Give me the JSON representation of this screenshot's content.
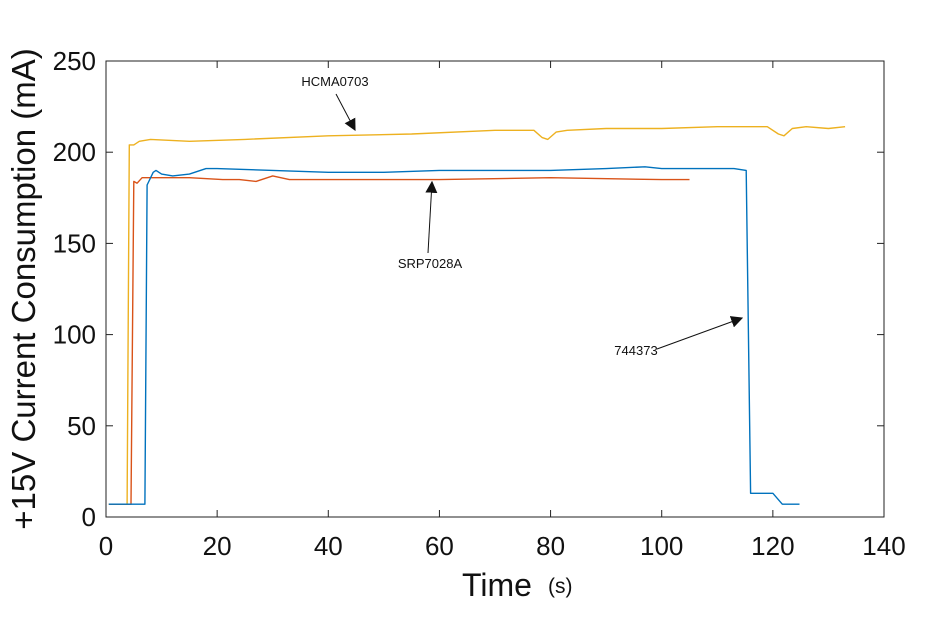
{
  "chart_data": {
    "type": "line",
    "title": "",
    "xlabel": "Time",
    "xlabel_unit": "(s)",
    "ylabel": "+15V Current Consumption (mA)",
    "xlim": [
      0,
      140
    ],
    "ylim": [
      0,
      250
    ],
    "xticks": [
      0,
      20,
      40,
      60,
      80,
      100,
      120,
      140
    ],
    "yticks": [
      0,
      50,
      100,
      150,
      200,
      250
    ],
    "grid": false,
    "legend": "none",
    "series": [
      {
        "name": "HCMA0703",
        "color": "#EDB120",
        "points": [
          [
            0.5,
            7
          ],
          [
            3.8,
            7
          ],
          [
            4.2,
            204
          ],
          [
            5,
            204
          ],
          [
            6,
            206
          ],
          [
            8,
            207
          ],
          [
            15,
            206
          ],
          [
            25,
            207
          ],
          [
            40,
            209
          ],
          [
            55,
            210
          ],
          [
            70,
            212
          ],
          [
            77,
            212
          ],
          [
            78.5,
            208
          ],
          [
            79.5,
            207
          ],
          [
            81,
            211
          ],
          [
            83,
            212
          ],
          [
            90,
            213
          ],
          [
            100,
            213
          ],
          [
            110,
            214
          ],
          [
            119,
            214
          ],
          [
            121,
            210
          ],
          [
            122,
            209
          ],
          [
            123.5,
            213
          ],
          [
            126,
            214
          ],
          [
            130,
            213
          ],
          [
            133,
            214
          ]
        ]
      },
      {
        "name": "SRP7028A",
        "color": "#D95319",
        "points": [
          [
            0.5,
            7
          ],
          [
            4.5,
            7
          ],
          [
            5,
            184
          ],
          [
            5.6,
            183
          ],
          [
            6.5,
            186
          ],
          [
            8,
            186
          ],
          [
            15,
            186
          ],
          [
            21,
            185
          ],
          [
            24,
            185
          ],
          [
            27,
            184
          ],
          [
            30,
            187
          ],
          [
            33,
            185
          ],
          [
            40,
            185
          ],
          [
            60,
            185
          ],
          [
            80,
            186
          ],
          [
            100,
            185
          ],
          [
            105,
            185
          ]
        ]
      },
      {
        "name": "744373",
        "color": "#0072BD",
        "points": [
          [
            0.5,
            7
          ],
          [
            7,
            7
          ],
          [
            7.4,
            182
          ],
          [
            8.5,
            189
          ],
          [
            9,
            190
          ],
          [
            10,
            188
          ],
          [
            12,
            187
          ],
          [
            15,
            188
          ],
          [
            18,
            191
          ],
          [
            20,
            191
          ],
          [
            30,
            190
          ],
          [
            40,
            189
          ],
          [
            50,
            189
          ],
          [
            60,
            190
          ],
          [
            70,
            190
          ],
          [
            80,
            190
          ],
          [
            90,
            191
          ],
          [
            97,
            192
          ],
          [
            100,
            191
          ],
          [
            110,
            191
          ],
          [
            113,
            191
          ],
          [
            115.2,
            190
          ],
          [
            116,
            13
          ],
          [
            120,
            13
          ],
          [
            121.7,
            7
          ],
          [
            124.8,
            7
          ]
        ]
      }
    ],
    "annotations": [
      {
        "text": "HCMA0703",
        "series": "HCMA0703"
      },
      {
        "text": "SRP7028A",
        "series": "SRP7028A"
      },
      {
        "text": "744373",
        "series": "744373"
      }
    ]
  }
}
